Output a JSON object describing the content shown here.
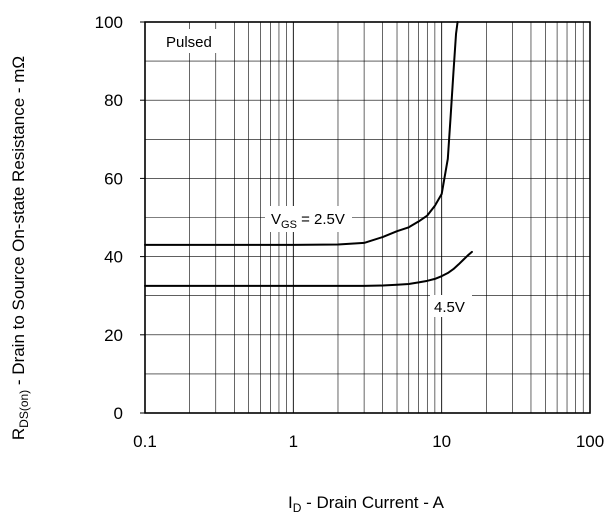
{
  "chart_data": {
    "type": "line",
    "x_scale": "log",
    "xlim": [
      0.1,
      100
    ],
    "ylim": [
      0,
      100
    ],
    "grid": true,
    "x_ticks": [
      "0.1",
      "1",
      "10",
      "100"
    ],
    "y_ticks": [
      "0",
      "20",
      "40",
      "60",
      "80",
      "100"
    ],
    "xlabel": {
      "main": "I",
      "sub": "D",
      "rest": " - Drain Current - A"
    },
    "ylabel": {
      "main": "R",
      "sub": "DS(on)",
      "rest": " - Drain to Source On-state Resistance - mΩ"
    },
    "annotations": {
      "pulsed": "Pulsed",
      "vgs_main": "V",
      "vgs_sub": "GS",
      "vgs_rest": " = 2.5V",
      "v45": "4.5V"
    },
    "series": [
      {
        "name": "2.5V",
        "x": [
          0.1,
          0.5,
          1,
          2,
          3,
          4,
          5,
          6,
          7,
          8,
          9,
          10,
          11,
          11.5,
          12,
          12.5,
          12.8
        ],
        "y": [
          43,
          43,
          43,
          43.1,
          43.5,
          45,
          46.5,
          47.5,
          49,
          50.5,
          53,
          56,
          65,
          76,
          87,
          97,
          100
        ]
      },
      {
        "name": "4.5V",
        "x": [
          0.1,
          0.5,
          1,
          2,
          3,
          4,
          5,
          6,
          7,
          8,
          9,
          10,
          11,
          12,
          13,
          14,
          15,
          16
        ],
        "y": [
          32.5,
          32.5,
          32.5,
          32.5,
          32.5,
          32.6,
          32.8,
          33,
          33.4,
          33.8,
          34.3,
          35,
          35.8,
          36.8,
          38,
          39.2,
          40.3,
          41.2
        ]
      }
    ]
  }
}
